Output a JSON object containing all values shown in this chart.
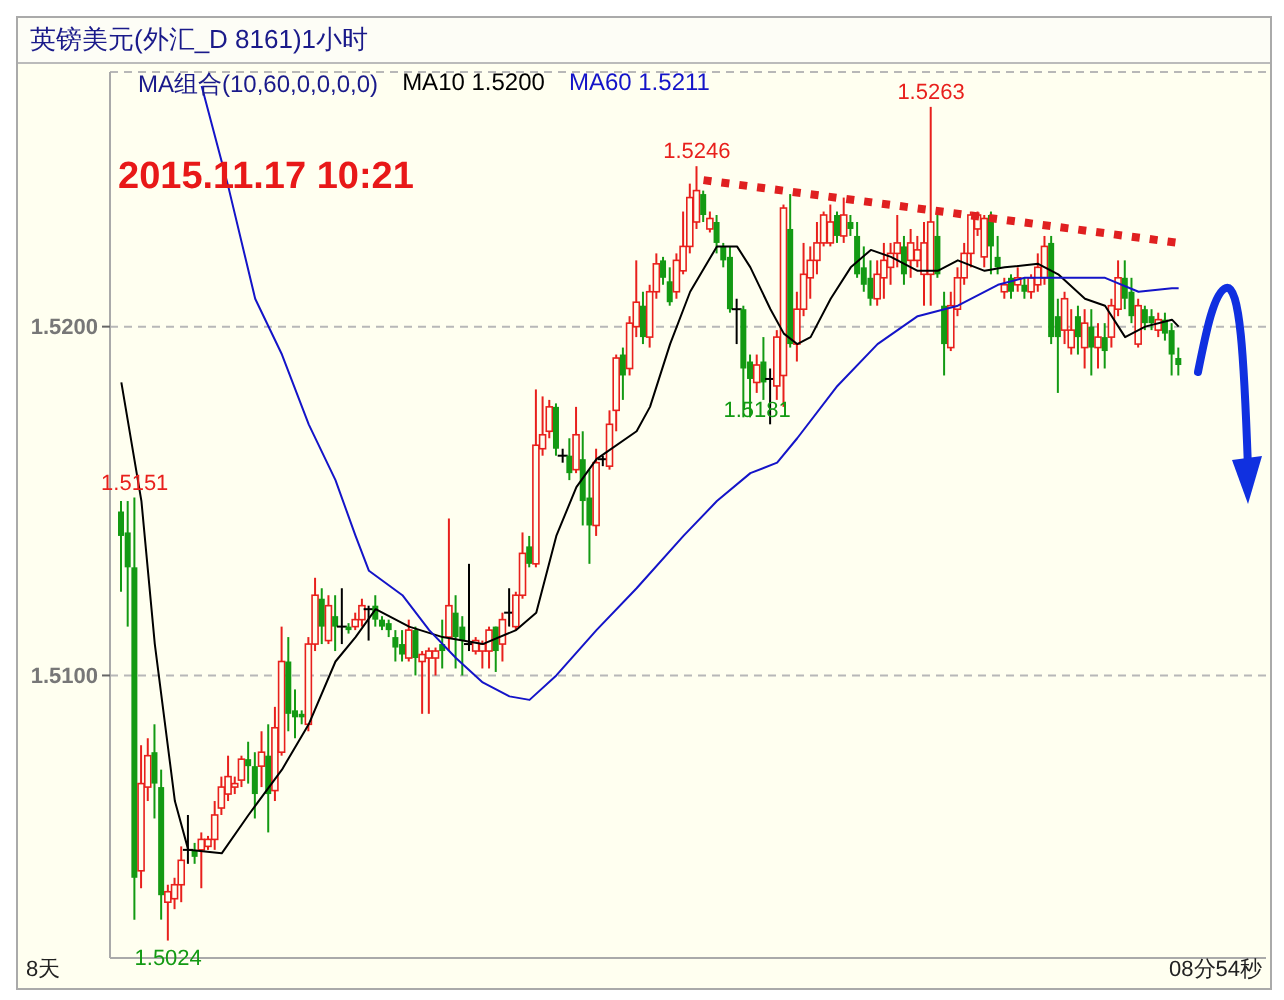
{
  "chart_data": {
    "type": "candlestick",
    "title": "英镑美元(外汇_D 8161)1小时",
    "subtitle": "MA组合(10,60,0,0,0,0)",
    "categories": [
      null,
      null,
      null,
      null,
      null,
      null,
      null,
      null,
      null,
      null,
      null,
      null,
      null,
      null,
      null,
      null,
      null,
      null,
      null,
      null,
      null,
      null,
      null,
      null,
      null,
      null,
      null,
      null,
      null,
      null,
      null,
      null,
      null,
      null,
      null,
      null,
      null,
      null,
      null,
      null,
      null,
      null,
      null,
      null,
      null,
      null,
      null,
      null,
      null,
      null,
      null,
      null,
      null,
      null,
      null,
      null,
      null,
      null,
      null,
      null,
      null,
      null,
      null,
      null,
      null,
      null,
      null,
      null,
      null,
      null,
      null,
      null,
      null,
      null,
      null,
      null,
      null,
      null,
      null,
      null,
      null,
      null,
      null,
      null,
      null,
      null,
      null,
      null,
      null,
      null,
      null,
      null,
      null,
      null,
      null,
      null,
      null,
      null,
      null,
      null,
      null,
      null,
      null,
      null,
      null,
      null,
      null,
      null,
      null,
      null,
      null,
      null,
      null,
      null,
      null,
      null,
      null,
      null,
      null,
      null,
      null,
      null,
      null,
      null,
      null,
      null,
      null,
      null,
      null,
      null,
      null,
      null,
      null,
      null,
      null,
      null,
      null,
      null,
      null,
      null,
      null,
      null,
      null,
      null,
      null,
      null,
      null,
      null,
      null,
      null,
      null,
      null,
      null,
      null,
      null,
      null,
      null,
      null,
      null
    ],
    "ohlc": [
      [
        1.5147,
        1.515,
        1.5124,
        1.514
      ],
      [
        1.5141,
        1.515,
        1.5114,
        1.5131
      ],
      [
        1.5131,
        1.5151,
        1.503,
        1.5042
      ],
      [
        1.5044,
        1.508,
        1.5039,
        1.5069
      ],
      [
        1.5068,
        1.5082,
        1.5064,
        1.5077
      ],
      [
        1.5078,
        1.5086,
        1.5059,
        1.5069
      ],
      [
        1.5068,
        1.5073,
        1.503,
        1.5037
      ],
      [
        1.5035,
        1.504,
        1.5024,
        1.5038
      ],
      [
        1.5036,
        1.5042,
        1.5033,
        1.504
      ],
      [
        1.504,
        1.5051,
        1.5035,
        1.5047
      ],
      [
        1.505,
        1.506,
        1.5046,
        1.505
      ],
      [
        1.505,
        1.5052,
        1.5046,
        1.5048
      ],
      [
        1.505,
        1.5055,
        1.5039,
        1.5053
      ],
      [
        1.5051,
        1.5054,
        1.505,
        1.5053
      ],
      [
        1.5053,
        1.5064,
        1.505,
        1.506
      ],
      [
        1.5062,
        1.5071,
        1.506,
        1.5068
      ],
      [
        1.5066,
        1.5077,
        1.5064,
        1.5071
      ],
      [
        1.5068,
        1.5071,
        1.5066,
        1.5069
      ],
      [
        1.507,
        1.5077,
        1.5068,
        1.5076
      ],
      [
        1.5076,
        1.5081,
        1.5069,
        1.5074
      ],
      [
        1.5074,
        1.5078,
        1.5059,
        1.5066
      ],
      [
        1.5074,
        1.5084,
        1.5068,
        1.5078
      ],
      [
        1.5077,
        1.5086,
        1.5055,
        1.5066
      ],
      [
        1.5067,
        1.5091,
        1.5064,
        1.5085
      ],
      [
        1.5078,
        1.5114,
        1.5077,
        1.5104
      ],
      [
        1.5104,
        1.5111,
        1.5084,
        1.5089
      ],
      [
        1.509,
        1.5096,
        1.5082,
        1.5088
      ],
      [
        1.5089,
        1.509,
        1.5086,
        1.5088
      ],
      [
        1.5086,
        1.5111,
        1.5084,
        1.5109
      ],
      [
        1.5109,
        1.5128,
        1.5107,
        1.5123
      ],
      [
        1.5122,
        1.5125,
        1.5109,
        1.5114
      ],
      [
        1.511,
        1.5123,
        1.5109,
        1.512
      ],
      [
        1.5117,
        1.5123,
        1.5107,
        1.5114
      ],
      [
        1.5114,
        1.5125,
        1.5109,
        1.5114
      ],
      [
        1.5114,
        1.5115,
        1.5112,
        1.5113
      ],
      [
        1.5114,
        1.5118,
        1.5113,
        1.5116
      ],
      [
        1.5116,
        1.5122,
        1.5114,
        1.512
      ],
      [
        1.5119,
        1.512,
        1.511,
        1.5119
      ],
      [
        1.512,
        1.5123,
        1.5114,
        1.5116
      ],
      [
        1.5116,
        1.5117,
        1.5113,
        1.5114
      ],
      [
        1.5115,
        1.5116,
        1.5111,
        1.5113
      ],
      [
        1.5111,
        1.5113,
        1.5104,
        1.5108
      ],
      [
        1.5109,
        1.5113,
        1.5104,
        1.5106
      ],
      [
        1.5105,
        1.5116,
        1.5104,
        1.5113
      ],
      [
        1.5113,
        1.5114,
        1.51,
        1.5105
      ],
      [
        1.5104,
        1.5107,
        1.5089,
        1.5106
      ],
      [
        1.5105,
        1.5108,
        1.5089,
        1.5107
      ],
      [
        1.5105,
        1.5108,
        1.51,
        1.5107
      ],
      [
        1.5109,
        1.5116,
        1.5102,
        1.5107
      ],
      [
        1.5111,
        1.5145,
        1.5107,
        1.512
      ],
      [
        1.5118,
        1.5123,
        1.5102,
        1.5111
      ],
      [
        1.5114,
        1.5117,
        1.51,
        1.511
      ],
      [
        1.5109,
        1.5132,
        1.5107,
        1.5109
      ],
      [
        1.5107,
        1.5111,
        1.5106,
        1.511
      ],
      [
        1.5107,
        1.511,
        1.5102,
        1.5109
      ],
      [
        1.5107,
        1.5114,
        1.5102,
        1.5113
      ],
      [
        1.5114,
        1.5114,
        1.5101,
        1.5107
      ],
      [
        1.5109,
        1.5118,
        1.5104,
        1.5116
      ],
      [
        1.5118,
        1.5125,
        1.5114,
        1.5118
      ],
      [
        1.5114,
        1.5124,
        1.5113,
        1.5123
      ],
      [
        1.5123,
        1.5141,
        1.5122,
        1.5135
      ],
      [
        1.5137,
        1.514,
        1.5131,
        1.5132
      ],
      [
        1.5132,
        1.5182,
        1.5131,
        1.5166
      ],
      [
        1.5165,
        1.518,
        1.5163,
        1.5169
      ],
      [
        1.517,
        1.5179,
        1.5168,
        1.5177
      ],
      [
        1.5177,
        1.5178,
        1.5163,
        1.5165
      ],
      [
        1.5163,
        1.5165,
        1.5161,
        1.5163
      ],
      [
        1.5163,
        1.5168,
        1.5156,
        1.5158
      ],
      [
        1.5159,
        1.5177,
        1.5158,
        1.5169
      ],
      [
        1.5162,
        1.517,
        1.5143,
        1.515
      ],
      [
        1.5151,
        1.5159,
        1.5132,
        1.5143
      ],
      [
        1.5143,
        1.5165,
        1.514,
        1.5161
      ],
      [
        1.5162,
        1.5163,
        1.516,
        1.5162
      ],
      [
        1.516,
        1.5176,
        1.5159,
        1.5172
      ],
      [
        1.5176,
        1.5192,
        1.517,
        1.5191
      ],
      [
        1.5192,
        1.5194,
        1.5179,
        1.5186
      ],
      [
        1.5188,
        1.5203,
        1.5186,
        1.5201
      ],
      [
        1.52,
        1.5219,
        1.5197,
        1.5207
      ],
      [
        1.5206,
        1.521,
        1.5195,
        1.5197
      ],
      [
        1.5197,
        1.5212,
        1.5194,
        1.521
      ],
      [
        1.521,
        1.5221,
        1.5208,
        1.5218
      ],
      [
        1.5219,
        1.522,
        1.5212,
        1.5214
      ],
      [
        1.5213,
        1.5217,
        1.5206,
        1.5207
      ],
      [
        1.521,
        1.5221,
        1.5208,
        1.5219
      ],
      [
        1.5216,
        1.5233,
        1.5215,
        1.5223
      ],
      [
        1.5223,
        1.5241,
        1.5221,
        1.5237
      ],
      [
        1.523,
        1.5246,
        1.5228,
        1.5239
      ],
      [
        1.5238,
        1.5239,
        1.523,
        1.5232
      ],
      [
        1.5228,
        1.5233,
        1.5227,
        1.5231
      ],
      [
        1.523,
        1.5232,
        1.5221,
        1.5224
      ],
      [
        1.5223,
        1.5224,
        1.5217,
        1.5219
      ],
      [
        1.522,
        1.5223,
        1.5204,
        1.5205
      ],
      [
        1.5205,
        1.5208,
        1.5195,
        1.5205
      ],
      [
        1.5205,
        1.5206,
        1.5174,
        1.5188
      ],
      [
        1.519,
        1.5192,
        1.5174,
        1.5185
      ],
      [
        1.5184,
        1.5192,
        1.5181,
        1.5189
      ],
      [
        1.519,
        1.5197,
        1.5179,
        1.5184
      ],
      [
        1.5185,
        1.5188,
        1.5172,
        1.5185
      ],
      [
        1.5183,
        1.5199,
        1.5179,
        1.5197
      ],
      [
        1.5186,
        1.5235,
        1.5177,
        1.5234
      ],
      [
        1.5228,
        1.5238,
        1.5194,
        1.5195
      ],
      [
        1.5195,
        1.521,
        1.519,
        1.5205
      ],
      [
        1.5205,
        1.5224,
        1.5203,
        1.5215
      ],
      [
        1.5214,
        1.5223,
        1.5208,
        1.5219
      ],
      [
        1.5219,
        1.523,
        1.5215,
        1.5224
      ],
      [
        1.5224,
        1.5233,
        1.5223,
        1.5232
      ],
      [
        1.5224,
        1.5235,
        1.5223,
        1.523
      ],
      [
        1.5232,
        1.5233,
        1.5224,
        1.5226
      ],
      [
        1.5226,
        1.5237,
        1.5224,
        1.5232
      ],
      [
        1.523,
        1.5232,
        1.5226,
        1.5228
      ],
      [
        1.5226,
        1.523,
        1.5214,
        1.5215
      ],
      [
        1.5217,
        1.5223,
        1.521,
        1.5212
      ],
      [
        1.5214,
        1.5219,
        1.5206,
        1.5208
      ],
      [
        1.5208,
        1.5219,
        1.5206,
        1.5215
      ],
      [
        1.5214,
        1.5224,
        1.5208,
        1.5219
      ],
      [
        1.5217,
        1.5224,
        1.5212,
        1.5221
      ],
      [
        1.5221,
        1.5232,
        1.5217,
        1.5224
      ],
      [
        1.5223,
        1.5226,
        1.5212,
        1.5215
      ],
      [
        1.5219,
        1.5228,
        1.5214,
        1.5224
      ],
      [
        1.5219,
        1.5226,
        1.5217,
        1.5222
      ],
      [
        1.5215,
        1.523,
        1.5206,
        1.5224
      ],
      [
        1.5215,
        1.5263,
        1.5206,
        1.523
      ],
      [
        1.5226,
        1.5233,
        1.5214,
        1.5215
      ],
      [
        1.5206,
        1.521,
        1.5186,
        1.5195
      ],
      [
        1.5194,
        1.521,
        1.5193,
        1.5206
      ],
      [
        1.5205,
        1.5217,
        1.5203,
        1.5214
      ],
      [
        1.5214,
        1.5224,
        1.5212,
        1.5221
      ],
      [
        1.5221,
        1.5233,
        1.5217,
        1.5232
      ],
      [
        1.5228,
        1.5233,
        1.5226,
        1.5232
      ],
      [
        1.522,
        1.5232,
        1.5217,
        1.5231
      ],
      [
        1.5232,
        1.5233,
        1.5215,
        1.5223
      ],
      [
        1.522,
        1.5226,
        1.5215,
        1.5217
      ],
      [
        1.521,
        1.5214,
        1.5208,
        1.5212
      ],
      [
        1.5214,
        1.5215,
        1.5208,
        1.521
      ],
      [
        1.5212,
        1.5217,
        1.521,
        1.5214
      ],
      [
        1.5212,
        1.5214,
        1.5208,
        1.521
      ],
      [
        1.521,
        1.5215,
        1.5208,
        1.5214
      ],
      [
        1.5212,
        1.5221,
        1.521,
        1.5217
      ],
      [
        1.5214,
        1.5226,
        1.5212,
        1.5223
      ],
      [
        1.5224,
        1.5226,
        1.5195,
        1.5197
      ],
      [
        1.5203,
        1.5208,
        1.5181,
        1.5197
      ],
      [
        1.5199,
        1.521,
        1.5195,
        1.5208
      ],
      [
        1.5194,
        1.5205,
        1.5192,
        1.5199
      ],
      [
        1.5203,
        1.5206,
        1.5192,
        1.5197
      ],
      [
        1.5194,
        1.5205,
        1.5188,
        1.5201
      ],
      [
        1.52,
        1.5205,
        1.5186,
        1.5194
      ],
      [
        1.5194,
        1.5201,
        1.5188,
        1.5197
      ],
      [
        1.5197,
        1.5201,
        1.5188,
        1.5193
      ],
      [
        1.5197,
        1.5208,
        1.5194,
        1.5206
      ],
      [
        1.5205,
        1.5219,
        1.5203,
        1.5214
      ],
      [
        1.5214,
        1.5219,
        1.5205,
        1.5208
      ],
      [
        1.521,
        1.5214,
        1.5201,
        1.5203
      ],
      [
        1.5195,
        1.5208,
        1.5194,
        1.5206
      ],
      [
        1.5205,
        1.5206,
        1.5199,
        1.5201
      ],
      [
        1.5203,
        1.5205,
        1.5199,
        1.5201
      ],
      [
        1.5199,
        1.5204,
        1.5197,
        1.5202
      ],
      [
        1.5202,
        1.5204,
        1.5196,
        1.5198
      ],
      [
        1.5199,
        1.5201,
        1.5186,
        1.5192
      ],
      [
        1.5191,
        1.5194,
        1.5186,
        1.5189
      ]
    ],
    "series": [
      {
        "name": "MA10 1.5200",
        "type": "line",
        "color": "#000000",
        "values": [
          1.5184,
          null,
          null,
          1.515,
          null,
          1.5109,
          null,
          null,
          1.5064,
          null,
          1.505,
          null,
          null,
          null,
          null,
          1.5049,
          null,
          null,
          null,
          1.506,
          null,
          null,
          null,
          null,
          1.5073,
          null,
          null,
          null,
          1.5086,
          null,
          null,
          null,
          1.5104,
          null,
          null,
          1.5111,
          null,
          null,
          1.5119,
          null,
          null,
          null,
          null,
          1.5114,
          null,
          null,
          null,
          null,
          1.5111,
          null,
          null,
          null,
          null,
          null,
          1.5109,
          null,
          null,
          null,
          null,
          1.5113,
          null,
          null,
          1.5118,
          null,
          null,
          1.514,
          null,
          null,
          1.5154,
          null,
          null,
          1.5162,
          null,
          null,
          null,
          null,
          null,
          1.517,
          null,
          1.5177,
          null,
          null,
          1.5195,
          null,
          null,
          1.521,
          null,
          null,
          null,
          1.5223,
          null,
          null,
          1.5223,
          null,
          1.5217,
          null,
          null,
          1.5205,
          null,
          1.5198,
          null,
          1.5195,
          null,
          1.5197,
          null,
          null,
          1.5208,
          null,
          null,
          1.5217,
          null,
          null,
          1.5222,
          null,
          null,
          1.522,
          null,
          null,
          null,
          1.5216,
          null,
          null,
          1.5216,
          null,
          null,
          1.5219,
          null,
          null,
          null,
          1.5216,
          null,
          null,
          1.5217,
          null,
          null,
          null,
          null,
          1.5218,
          null,
          null,
          1.5215,
          null,
          null,
          null,
          1.5208,
          null,
          null,
          1.5206,
          null,
          null,
          1.5197,
          null,
          null,
          1.52,
          null,
          null,
          null,
          1.5202,
          1.52
        ]
      },
      {
        "name": "MA60 1.5211",
        "type": "line",
        "color": "#1414c8",
        "values": [
          null,
          null,
          null,
          null,
          null,
          null,
          null,
          null,
          null,
          null,
          null,
          null,
          1.5269,
          null,
          null,
          null,
          1.524,
          null,
          null,
          null,
          1.5208,
          null,
          null,
          null,
          1.5192,
          null,
          null,
          null,
          1.5172,
          null,
          null,
          null,
          1.5156,
          null,
          null,
          1.514,
          null,
          1.513,
          null,
          null,
          null,
          null,
          1.5123,
          null,
          null,
          null,
          1.5113,
          null,
          null,
          null,
          1.5105,
          null,
          null,
          null,
          1.5098,
          null,
          null,
          null,
          1.5094,
          null,
          null,
          1.5093,
          null,
          null,
          null,
          1.51,
          null,
          null,
          null,
          null,
          null,
          1.5113,
          null,
          null,
          null,
          null,
          null,
          1.5125,
          null,
          null,
          null,
          null,
          null,
          null,
          1.514,
          null,
          null,
          null,
          null,
          1.515,
          null,
          null,
          null,
          null,
          1.5158,
          null,
          null,
          null,
          1.5161,
          null,
          null,
          1.5168,
          null,
          null,
          null,
          null,
          null,
          1.5183,
          null,
          null,
          null,
          null,
          null,
          1.5195,
          null,
          null,
          null,
          null,
          null,
          1.5203,
          null,
          null,
          null,
          null,
          null,
          1.5206,
          null,
          null,
          null,
          null,
          null,
          1.5212,
          null,
          null,
          null,
          1.5214,
          null,
          null,
          null,
          null,
          1.5214,
          null,
          null,
          null,
          null,
          null,
          null,
          1.5214,
          null,
          null,
          null,
          null,
          1.521,
          null,
          null,
          null,
          null,
          1.5211,
          1.5211
        ]
      },
      {
        "type": "line",
        "color": "#e02020",
        "line_style": "dotted",
        "values": [
          null,
          null,
          null,
          null,
          null,
          null,
          null,
          null,
          null,
          null,
          null,
          null,
          null,
          null,
          null,
          null,
          null,
          null,
          null,
          null,
          null,
          null,
          null,
          null,
          null,
          null,
          null,
          null,
          null,
          null,
          null,
          null,
          null,
          null,
          null,
          null,
          null,
          null,
          null,
          null,
          null,
          null,
          null,
          null,
          null,
          null,
          null,
          null,
          null,
          null,
          null,
          null,
          null,
          null,
          null,
          null,
          null,
          null,
          null,
          null,
          null,
          null,
          null,
          null,
          null,
          null,
          null,
          null,
          null,
          null,
          null,
          null,
          null,
          null,
          null,
          null,
          null,
          null,
          null,
          null,
          null,
          null,
          null,
          null,
          null,
          null,
          null,
          1.5242,
          null,
          null,
          null,
          null,
          null,
          null,
          null,
          null,
          null,
          null,
          null,
          null,
          null,
          null,
          null,
          null,
          null,
          null,
          null,
          null,
          null,
          null,
          null,
          null,
          null,
          null,
          null,
          null,
          null,
          null,
          null,
          null,
          null,
          null,
          null,
          null,
          null,
          null,
          null,
          null,
          null,
          null,
          null,
          null,
          null,
          null,
          null,
          null,
          null,
          null,
          null,
          null,
          null,
          null,
          null,
          null,
          null,
          null,
          null,
          null,
          null,
          null,
          null,
          null,
          null,
          null,
          null,
          null,
          null,
          null,
          1.5224
        ]
      }
    ],
    "ylim": [
      1.5019,
      1.5273
    ],
    "yticks": [
      {
        "value": 1.51,
        "label": "1.5100"
      },
      {
        "value": 1.52,
        "label": "1.5200"
      }
    ],
    "grid": "y",
    "legend": "top left",
    "marker": "none",
    "annotations": [
      "2015.11.17 10:21",
      "8天",
      "08分54秒",
      {
        "text": "1.5151",
        "y": 1.5151
      },
      {
        "text": "1.5024",
        "y": 1.5024
      },
      {
        "text": "1.5246",
        "y": 1.5246
      },
      {
        "text": "1.5263",
        "y": 1.5263
      },
      {
        "text": "1.5181",
        "y": 1.5181
      }
    ]
  }
}
